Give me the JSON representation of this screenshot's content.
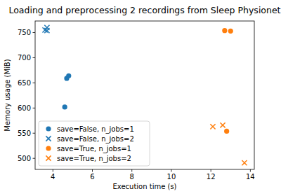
{
  "chart_data": {
    "type": "scatter",
    "title": "Loading and preprocessing 2 recordings from Sleep Physionet",
    "x_label": "Execution time (s)",
    "y_label": "Memory usage (MiB)",
    "xlim": [
      3.1,
      14.2
    ],
    "xticks": [
      4,
      6,
      8,
      10,
      12,
      14
    ],
    "ylim": [
      478,
      773
    ],
    "yticks": [
      500,
      550,
      600,
      650,
      700,
      750
    ],
    "legend": "lower-left",
    "grid": false,
    "series": [
      {
        "name": "save=False, n_jobs=1",
        "color": "#1f77b4",
        "marker": "circle",
        "x": [
          4.6,
          4.7,
          4.8
        ],
        "values": [
          602,
          659,
          664
        ]
      },
      {
        "name": "save=False, n_jobs=2",
        "color": "#1f77b4",
        "marker": "x",
        "x": [
          3.6,
          3.7,
          3.7
        ],
        "values": [
          755,
          760,
          754
        ]
      },
      {
        "name": "save=True, n_jobs=1",
        "color": "#ff7f0e",
        "marker": "circle",
        "x": [
          12.7,
          13.0,
          12.8
        ],
        "values": [
          754,
          753,
          554
        ]
      },
      {
        "name": "save=True, n_jobs=2",
        "color": "#ff7f0e",
        "marker": "x",
        "x": [
          12.1,
          12.6,
          13.7
        ],
        "values": [
          563,
          566,
          491
        ]
      }
    ]
  }
}
